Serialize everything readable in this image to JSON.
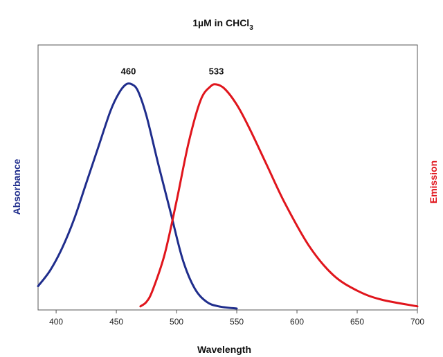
{
  "chart_data": {
    "type": "line",
    "title": "1µM in CHCl",
    "title_subscript": "3",
    "xlabel": "Wavelength",
    "ylabel_left": "Absorbance",
    "ylabel_right": "Emission",
    "xlim": [
      385,
      700
    ],
    "ylim": [
      0,
      1
    ],
    "xticks": [
      400,
      450,
      500,
      550,
      600,
      650,
      700
    ],
    "grid": false,
    "colors": {
      "absorbance": "#1f2d8c",
      "emission": "#e0151c"
    },
    "annotations": [
      {
        "text": "460",
        "x": 460,
        "y": 1.03
      },
      {
        "text": "533",
        "x": 533,
        "y": 1.03
      }
    ],
    "series": [
      {
        "name": "Absorbance",
        "x": [
          385,
          395,
          405,
          415,
          425,
          435,
          445,
          452,
          458,
          463,
          468,
          475,
          485,
          495,
          505,
          515,
          525,
          535,
          550
        ],
        "y": [
          0.1,
          0.17,
          0.27,
          0.4,
          0.56,
          0.72,
          0.88,
          0.96,
          1.0,
          1.0,
          0.97,
          0.86,
          0.64,
          0.43,
          0.22,
          0.09,
          0.03,
          0.01,
          0.0
        ]
      },
      {
        "name": "Emission",
        "x": [
          470,
          475,
          480,
          490,
          500,
          510,
          520,
          528,
          533,
          540,
          550,
          560,
          575,
          590,
          610,
          630,
          650,
          670,
          700
        ],
        "y": [
          0.01,
          0.03,
          0.08,
          0.24,
          0.48,
          0.74,
          0.93,
          0.99,
          1.0,
          0.98,
          0.91,
          0.81,
          0.64,
          0.47,
          0.28,
          0.15,
          0.08,
          0.04,
          0.01
        ]
      }
    ]
  }
}
